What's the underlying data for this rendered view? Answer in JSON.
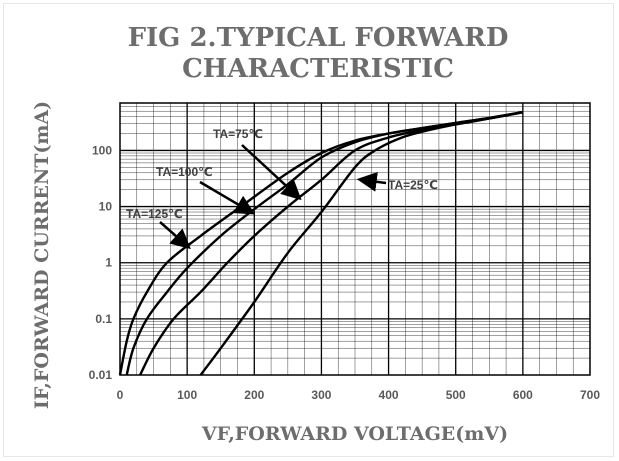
{
  "chart_data": {
    "type": "line",
    "title_line1": "FIG 2.TYPICAL FORWARD",
    "title_line2": "CHARACTERISTIC",
    "xlabel": "VF,FORWARD  VOLTAGE(mV)",
    "ylabel": "IF,FORWARD  CURRENT(mA)",
    "x_scale": "linear",
    "y_scale": "log",
    "xlim": [
      0,
      700
    ],
    "ylim": [
      0.01,
      700
    ],
    "x_ticks": [
      "0",
      "100",
      "200",
      "300",
      "400",
      "500",
      "600",
      "700"
    ],
    "x_tick_values": [
      0,
      100,
      200,
      300,
      400,
      500,
      600,
      700
    ],
    "y_ticks": [
      "0.01",
      "0.1",
      "1",
      "10",
      "100"
    ],
    "y_tick_values": [
      0.01,
      0.1,
      1,
      10,
      100
    ],
    "grid": true,
    "colors": {
      "line": "#000000",
      "grid": "#000000",
      "title": "#6d6d6d",
      "tick": "#595959"
    },
    "series": [
      {
        "label": "TA=125℃",
        "x": [
          0,
          10,
          20,
          40,
          70,
          120,
          180,
          250,
          300,
          350,
          400,
          450,
          500,
          550,
          600
        ],
        "y": [
          0.01,
          0.04,
          0.1,
          0.3,
          1,
          3,
          10,
          40,
          90,
          150,
          200,
          250,
          310,
          380,
          480
        ]
      },
      {
        "label": "TA=100℃",
        "x": [
          10,
          20,
          40,
          70,
          100,
          150,
          200,
          250,
          300,
          350,
          400,
          450,
          500,
          550,
          600
        ],
        "y": [
          0.01,
          0.03,
          0.1,
          0.3,
          0.8,
          3,
          9,
          25,
          75,
          140,
          200,
          250,
          310,
          380,
          480
        ]
      },
      {
        "label": "TA=75℃",
        "x": [
          30,
          50,
          80,
          120,
          160,
          200,
          250,
          300,
          350,
          400,
          450,
          500,
          550,
          600
        ],
        "y": [
          0.01,
          0.03,
          0.1,
          0.3,
          1,
          3,
          10,
          30,
          100,
          170,
          230,
          300,
          370,
          480
        ]
      },
      {
        "label": "TA=25℃",
        "x": [
          120,
          150,
          200,
          250,
          300,
          350,
          380,
          420,
          460,
          500,
          550,
          600
        ],
        "y": [
          0.01,
          0.03,
          0.2,
          1.5,
          8,
          50,
          100,
          170,
          230,
          290,
          370,
          480
        ]
      }
    ],
    "annotations": [
      {
        "text": "TA=75℃",
        "series": 2,
        "x": 265,
        "y": 15
      },
      {
        "text": "TA=100℃",
        "series": 1,
        "x": 195,
        "y": 8
      },
      {
        "text": "TA=125℃",
        "series": 0,
        "x": 100,
        "y": 2
      },
      {
        "text": "TA=25℃",
        "series": 3,
        "x": 360,
        "y": 30
      }
    ]
  }
}
